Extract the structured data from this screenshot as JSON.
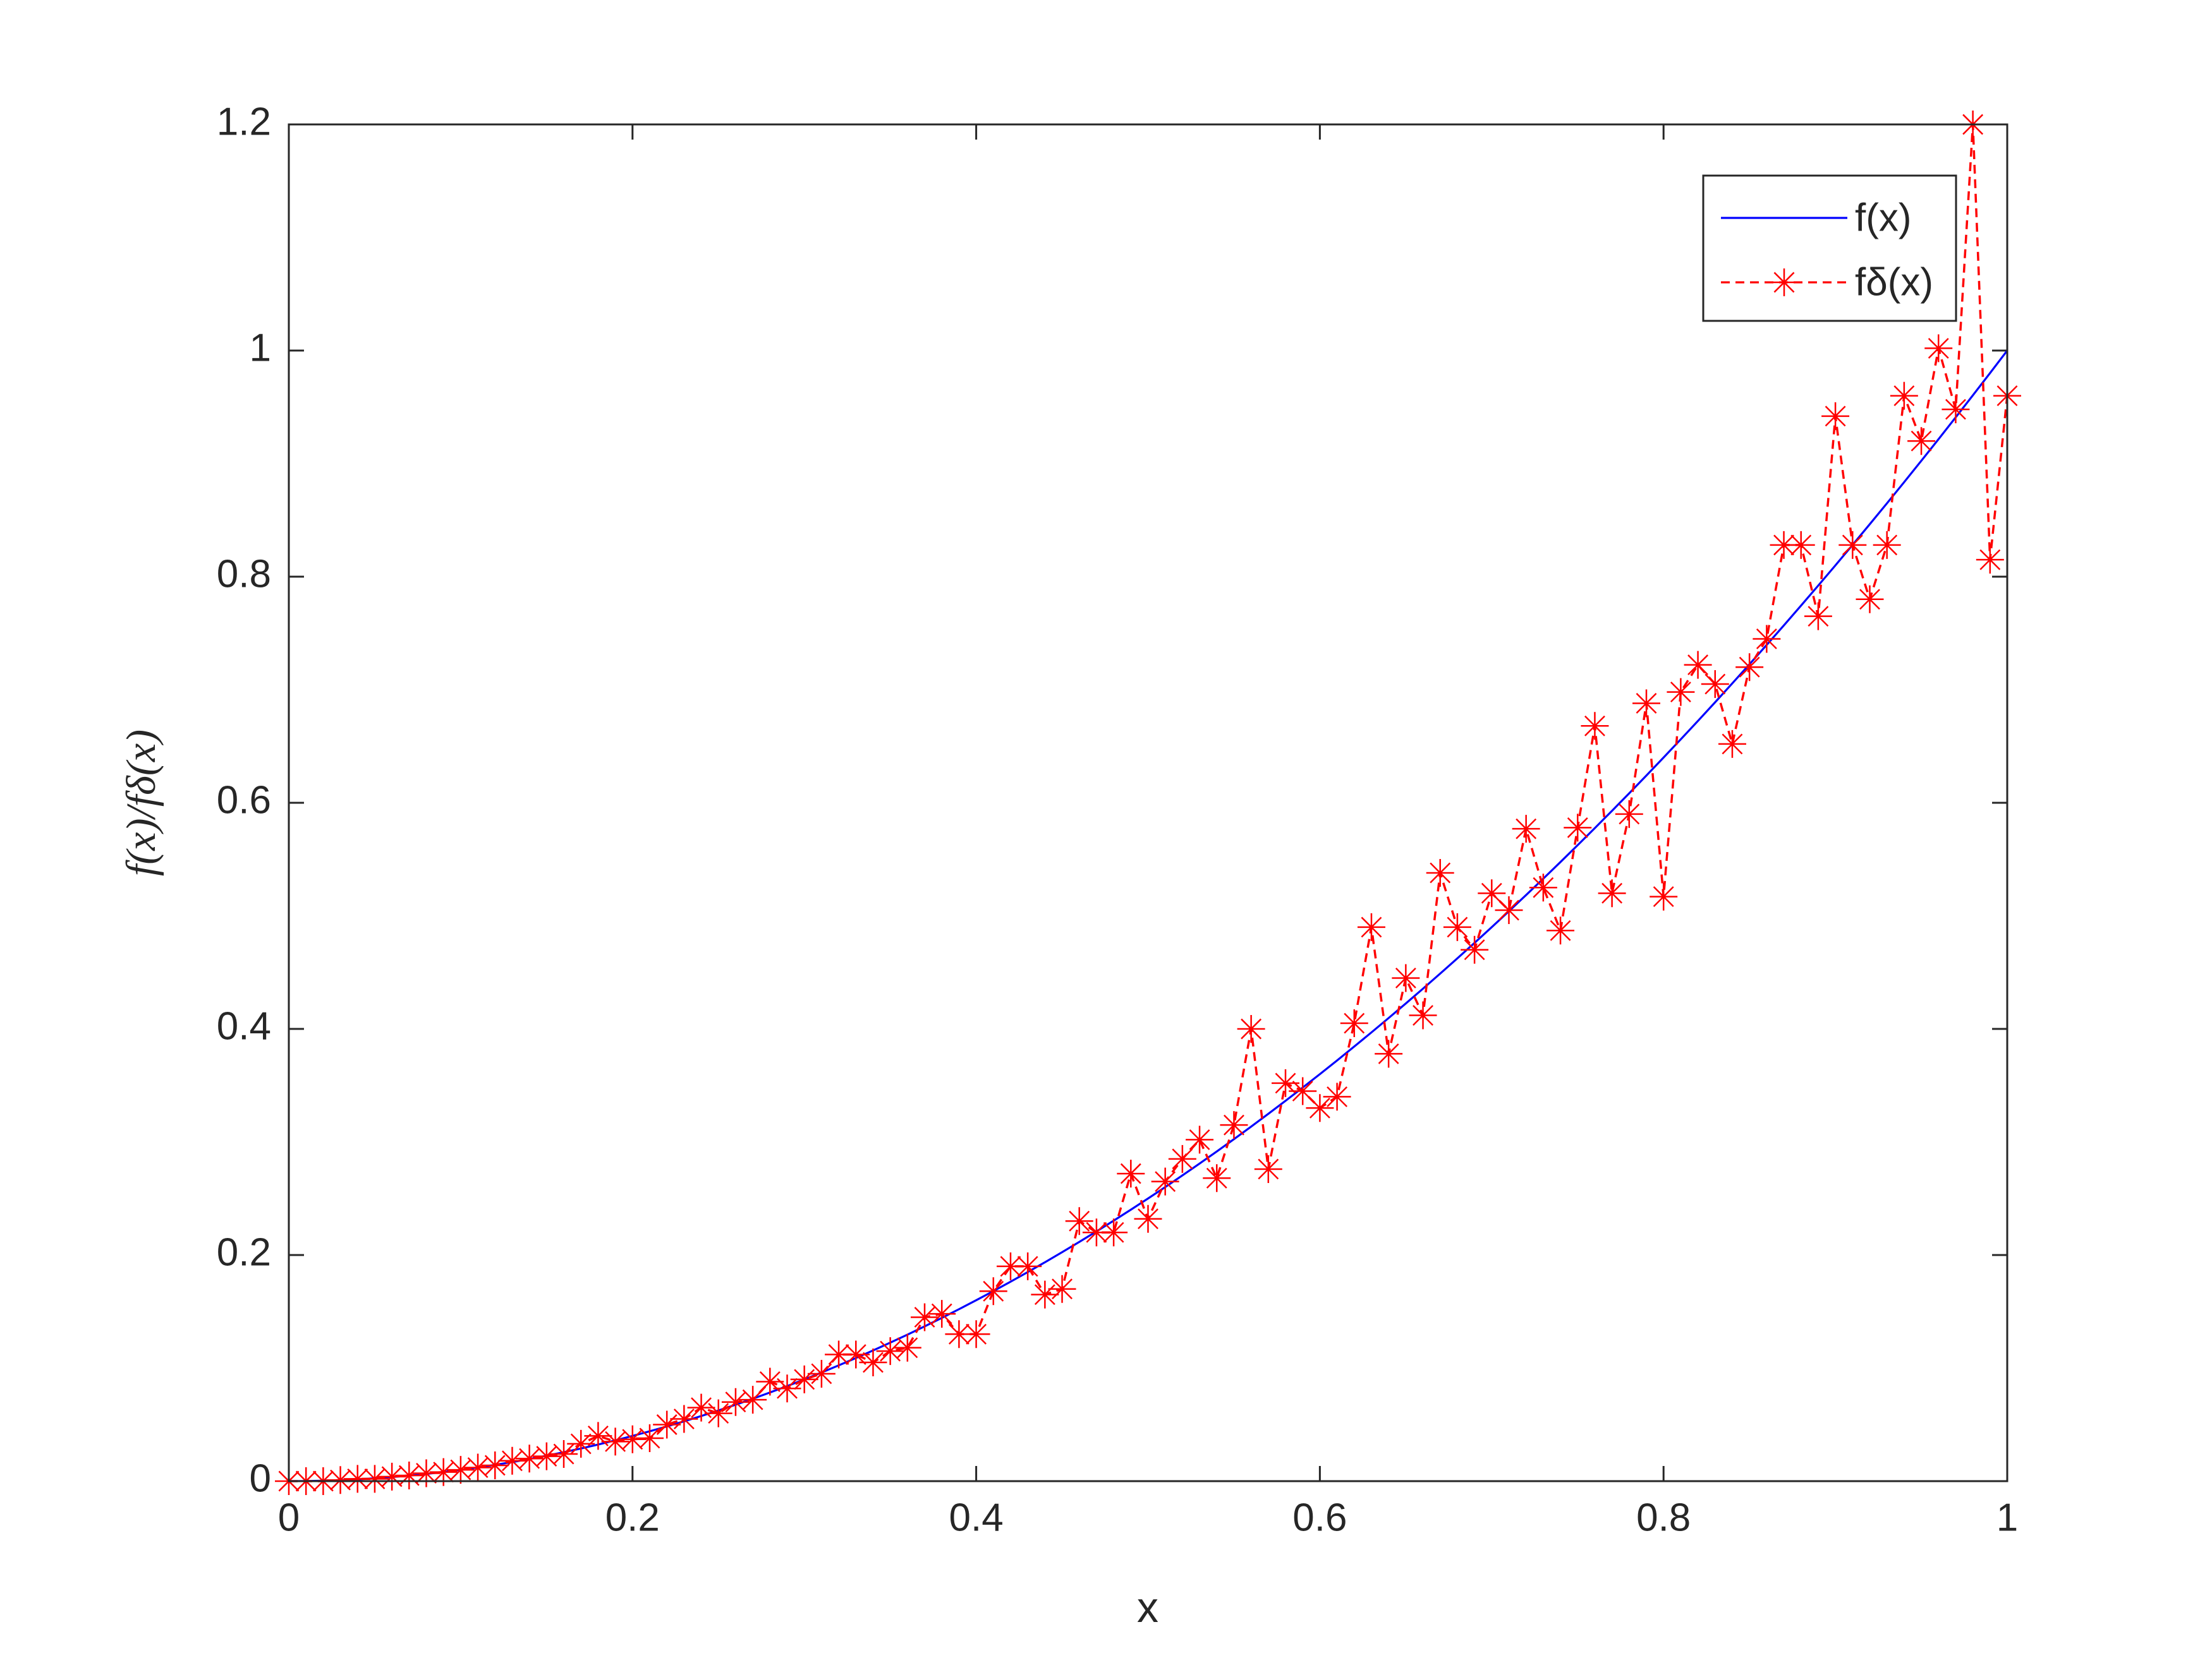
{
  "chart_data": {
    "type": "line",
    "xlabel": "x",
    "ylabel": "f(x)/fδ(x)",
    "x": [
      0,
      0.01,
      0.02,
      0.03,
      0.04,
      0.05,
      0.06,
      0.07,
      0.08,
      0.09,
      0.1,
      0.11,
      0.12,
      0.13,
      0.14,
      0.15,
      0.16,
      0.17,
      0.18,
      0.19,
      0.2,
      0.21,
      0.22,
      0.23,
      0.24,
      0.25,
      0.26,
      0.27,
      0.28,
      0.29,
      0.3,
      0.31,
      0.32,
      0.33,
      0.34,
      0.35,
      0.36,
      0.37,
      0.38,
      0.39,
      0.4,
      0.41,
      0.42,
      0.43,
      0.44,
      0.45,
      0.46,
      0.47,
      0.48,
      0.49,
      0.5,
      0.51,
      0.52,
      0.53,
      0.54,
      0.55,
      0.56,
      0.57,
      0.58,
      0.59,
      0.6,
      0.61,
      0.62,
      0.63,
      0.64,
      0.65,
      0.66,
      0.67,
      0.68,
      0.69,
      0.7,
      0.71,
      0.72,
      0.73,
      0.74,
      0.75,
      0.76,
      0.77,
      0.78,
      0.79,
      0.8,
      0.81,
      0.82,
      0.83,
      0.84,
      0.85,
      0.86,
      0.87,
      0.88,
      0.89,
      0.9,
      0.91,
      0.92,
      0.93,
      0.94,
      0.95,
      0.96,
      0.97,
      0.98,
      0.99,
      1
    ],
    "series": [
      {
        "name": "f(x)",
        "color": "#0000ff",
        "style": "solid",
        "values": [
          0,
          0.0001,
          0.0004,
          0.0009,
          0.0016,
          0.0025,
          0.0036,
          0.0049,
          0.0064,
          0.0081,
          0.01,
          0.0121,
          0.0144,
          0.0169,
          0.0196,
          0.0225,
          0.0256,
          0.0289,
          0.0324,
          0.0361,
          0.04,
          0.0441,
          0.0484,
          0.0529,
          0.0576,
          0.0625,
          0.0676,
          0.0729,
          0.0784,
          0.0841,
          0.09,
          0.0961,
          0.1024,
          0.1089,
          0.1156,
          0.1225,
          0.1296,
          0.1369,
          0.1444,
          0.1521,
          0.16,
          0.1681,
          0.1764,
          0.1849,
          0.1936,
          0.2025,
          0.2116,
          0.2209,
          0.2304,
          0.2401,
          0.25,
          0.2601,
          0.2704,
          0.2809,
          0.2916,
          0.3025,
          0.3136,
          0.3249,
          0.3364,
          0.3481,
          0.36,
          0.3721,
          0.3844,
          0.3969,
          0.4096,
          0.4225,
          0.4356,
          0.4489,
          0.4624,
          0.4761,
          0.49,
          0.5041,
          0.5184,
          0.5329,
          0.5476,
          0.5625,
          0.5776,
          0.5929,
          0.6084,
          0.6241,
          0.64,
          0.6561,
          0.6724,
          0.6889,
          0.7056,
          0.7225,
          0.7396,
          0.7569,
          0.7744,
          0.7921,
          0.81,
          0.8281,
          0.8464,
          0.8649,
          0.8836,
          0.9025,
          0.9216,
          0.9409,
          0.9604,
          0.9801,
          1
        ]
      },
      {
        "name": "fδ(x)",
        "color": "#ff0000",
        "style": "dashed",
        "marker": "asterisk",
        "values": [
          0,
          0,
          0,
          0.001,
          0.002,
          0.002,
          0.004,
          0.005,
          0.007,
          0.008,
          0.01,
          0.012,
          0.014,
          0.018,
          0.02,
          0.022,
          0.024,
          0.033,
          0.04,
          0.035,
          0.037,
          0.038,
          0.05,
          0.055,
          0.065,
          0.06,
          0.07,
          0.072,
          0.088,
          0.082,
          0.09,
          0.095,
          0.112,
          0.112,
          0.105,
          0.115,
          0.118,
          0.145,
          0.148,
          0.13,
          0.13,
          0.168,
          0.19,
          0.19,
          0.165,
          0.17,
          0.23,
          0.22,
          0.22,
          0.272,
          0.232,
          0.265,
          0.285,
          0.302,
          0.268,
          0.315,
          0.4,
          0.276,
          0.352,
          0.345,
          0.33,
          0.34,
          0.405,
          0.49,
          0.378,
          0.445,
          0.412,
          0.538,
          0.49,
          0.47,
          0.52,
          0.505,
          0.577,
          0.525,
          0.487,
          0.578,
          0.668,
          0.52,
          0.59,
          0.688,
          0.517,
          0.698,
          0.722,
          0.705,
          0.652,
          0.72,
          0.745,
          0.828,
          0.828,
          0.765,
          0.942,
          0.828,
          0.78,
          0.828,
          0.96,
          0.92,
          1.002,
          0.948,
          1.2,
          0.815,
          0.96
        ]
      }
    ],
    "xlim": [
      0,
      1
    ],
    "xticks": [
      0,
      0.2,
      0.4,
      0.6,
      0.8,
      1
    ],
    "ylim": [
      0,
      1.2
    ],
    "yticks": [
      0,
      0.2,
      0.4,
      0.6,
      0.8,
      1,
      1.2
    ],
    "legend": "upper right",
    "grid": false
  }
}
